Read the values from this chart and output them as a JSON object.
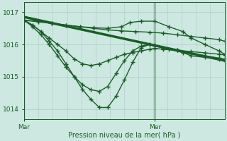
{
  "xlabel": "Pression niveau de la mer( hPa )",
  "bg_color": "#cce8e0",
  "grid_color": "#aaccc4",
  "line_color": "#1a5c28",
  "ylim": [
    1013.7,
    1017.3
  ],
  "xlim": [
    0,
    72
  ],
  "yticks": [
    1014,
    1015,
    1016,
    1017
  ],
  "mar_x": 0,
  "mer_x": 47,
  "series": [
    {
      "x": [
        0,
        72
      ],
      "y": [
        1016.85,
        1015.5
      ],
      "marker": null,
      "markersize": 0,
      "linewidth": 2.5
    },
    {
      "x": [
        0,
        5,
        10,
        15,
        20,
        25,
        30,
        35,
        40,
        45,
        50,
        55,
        60,
        65,
        70,
        72
      ],
      "y": [
        1016.75,
        1016.7,
        1016.65,
        1016.6,
        1016.55,
        1016.5,
        1016.45,
        1016.42,
        1016.4,
        1016.38,
        1016.35,
        1016.3,
        1016.25,
        1016.2,
        1016.15,
        1016.1
      ],
      "marker": "+",
      "markersize": 4,
      "linewidth": 1.0
    },
    {
      "x": [
        0,
        5,
        10,
        15,
        20,
        25,
        30,
        35,
        38,
        42,
        47,
        52,
        57,
        60,
        65,
        70,
        72
      ],
      "y": [
        1016.75,
        1016.72,
        1016.65,
        1016.6,
        1016.55,
        1016.52,
        1016.5,
        1016.55,
        1016.68,
        1016.72,
        1016.72,
        1016.55,
        1016.4,
        1016.2,
        1016.0,
        1015.8,
        1015.7
      ],
      "marker": "+",
      "markersize": 4,
      "linewidth": 1.0
    },
    {
      "x": [
        0,
        3,
        6,
        9,
        12,
        15,
        18,
        21,
        24,
        27,
        30,
        33,
        36,
        39,
        42,
        45,
        47,
        52,
        57,
        60,
        65,
        70,
        72
      ],
      "y": [
        1016.75,
        1016.6,
        1016.4,
        1016.1,
        1015.8,
        1015.4,
        1015.0,
        1014.6,
        1014.3,
        1014.05,
        1014.05,
        1014.4,
        1014.9,
        1015.45,
        1015.9,
        1016.0,
        1015.95,
        1015.85,
        1015.75,
        1015.65,
        1015.6,
        1015.55,
        1015.5
      ],
      "marker": "+",
      "markersize": 4,
      "linewidth": 1.0
    },
    {
      "x": [
        0,
        3,
        6,
        9,
        12,
        15,
        18,
        21,
        24,
        27,
        30,
        33,
        36,
        39,
        42,
        45,
        47,
        50,
        55,
        60,
        65,
        70,
        72
      ],
      "y": [
        1016.75,
        1016.55,
        1016.3,
        1016.0,
        1015.65,
        1015.3,
        1015.0,
        1014.75,
        1014.6,
        1014.55,
        1014.7,
        1015.1,
        1015.5,
        1015.8,
        1015.95,
        1016.0,
        1015.98,
        1015.9,
        1015.82,
        1015.72,
        1015.65,
        1015.58,
        1015.55
      ],
      "marker": "+",
      "markersize": 4,
      "linewidth": 1.0
    },
    {
      "x": [
        0,
        3,
        6,
        9,
        12,
        15,
        18,
        21,
        24,
        27,
        30,
        33,
        36,
        39,
        42,
        45,
        47,
        50,
        55,
        60,
        65,
        70,
        72
      ],
      "y": [
        1016.75,
        1016.6,
        1016.4,
        1016.2,
        1016.0,
        1015.8,
        1015.55,
        1015.4,
        1015.35,
        1015.4,
        1015.5,
        1015.6,
        1015.7,
        1015.75,
        1015.8,
        1015.85,
        1015.88,
        1015.85,
        1015.82,
        1015.78,
        1015.74,
        1015.7,
        1015.68
      ],
      "marker": "+",
      "markersize": 4,
      "linewidth": 1.0
    }
  ]
}
